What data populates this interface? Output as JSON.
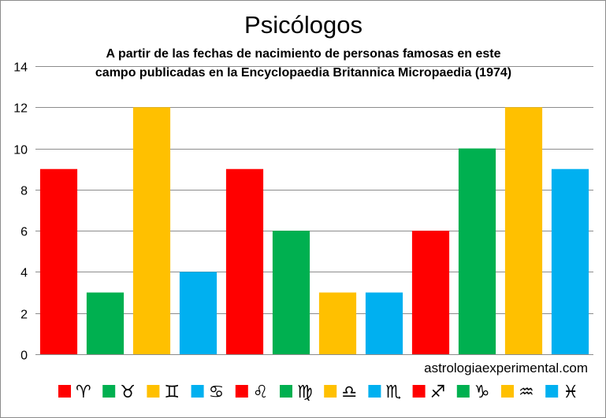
{
  "chart_data": {
    "type": "bar",
    "title": "Psicólogos",
    "subtitle_lines": [
      "A partir de las fechas de nacimiento de personas famosas en este",
      "campo publicadas en la Encyclopaedia Britannica Micropaedia (1974)"
    ],
    "credit": "astrologiaexperimental.com",
    "categories": [
      "♈",
      "♉",
      "♊",
      "♋",
      "♌",
      "♍",
      "♎",
      "♏",
      "♐",
      "♑",
      "♒",
      "♓"
    ],
    "values": [
      9,
      3,
      12,
      4,
      9,
      6,
      3,
      3,
      6,
      10,
      12,
      9
    ],
    "colors": [
      "#ff0000",
      "#00b050",
      "#ffc000",
      "#00b0f0",
      "#ff0000",
      "#00b050",
      "#ffc000",
      "#00b0f0",
      "#ff0000",
      "#00b050",
      "#ffc000",
      "#00b0f0"
    ],
    "xlabel": "",
    "ylabel": "",
    "ylim": [
      0,
      14
    ],
    "yticks": [
      "0",
      "2",
      "4",
      "6",
      "8",
      "10",
      "12",
      "14"
    ],
    "grid": true,
    "legend": "bottom"
  }
}
